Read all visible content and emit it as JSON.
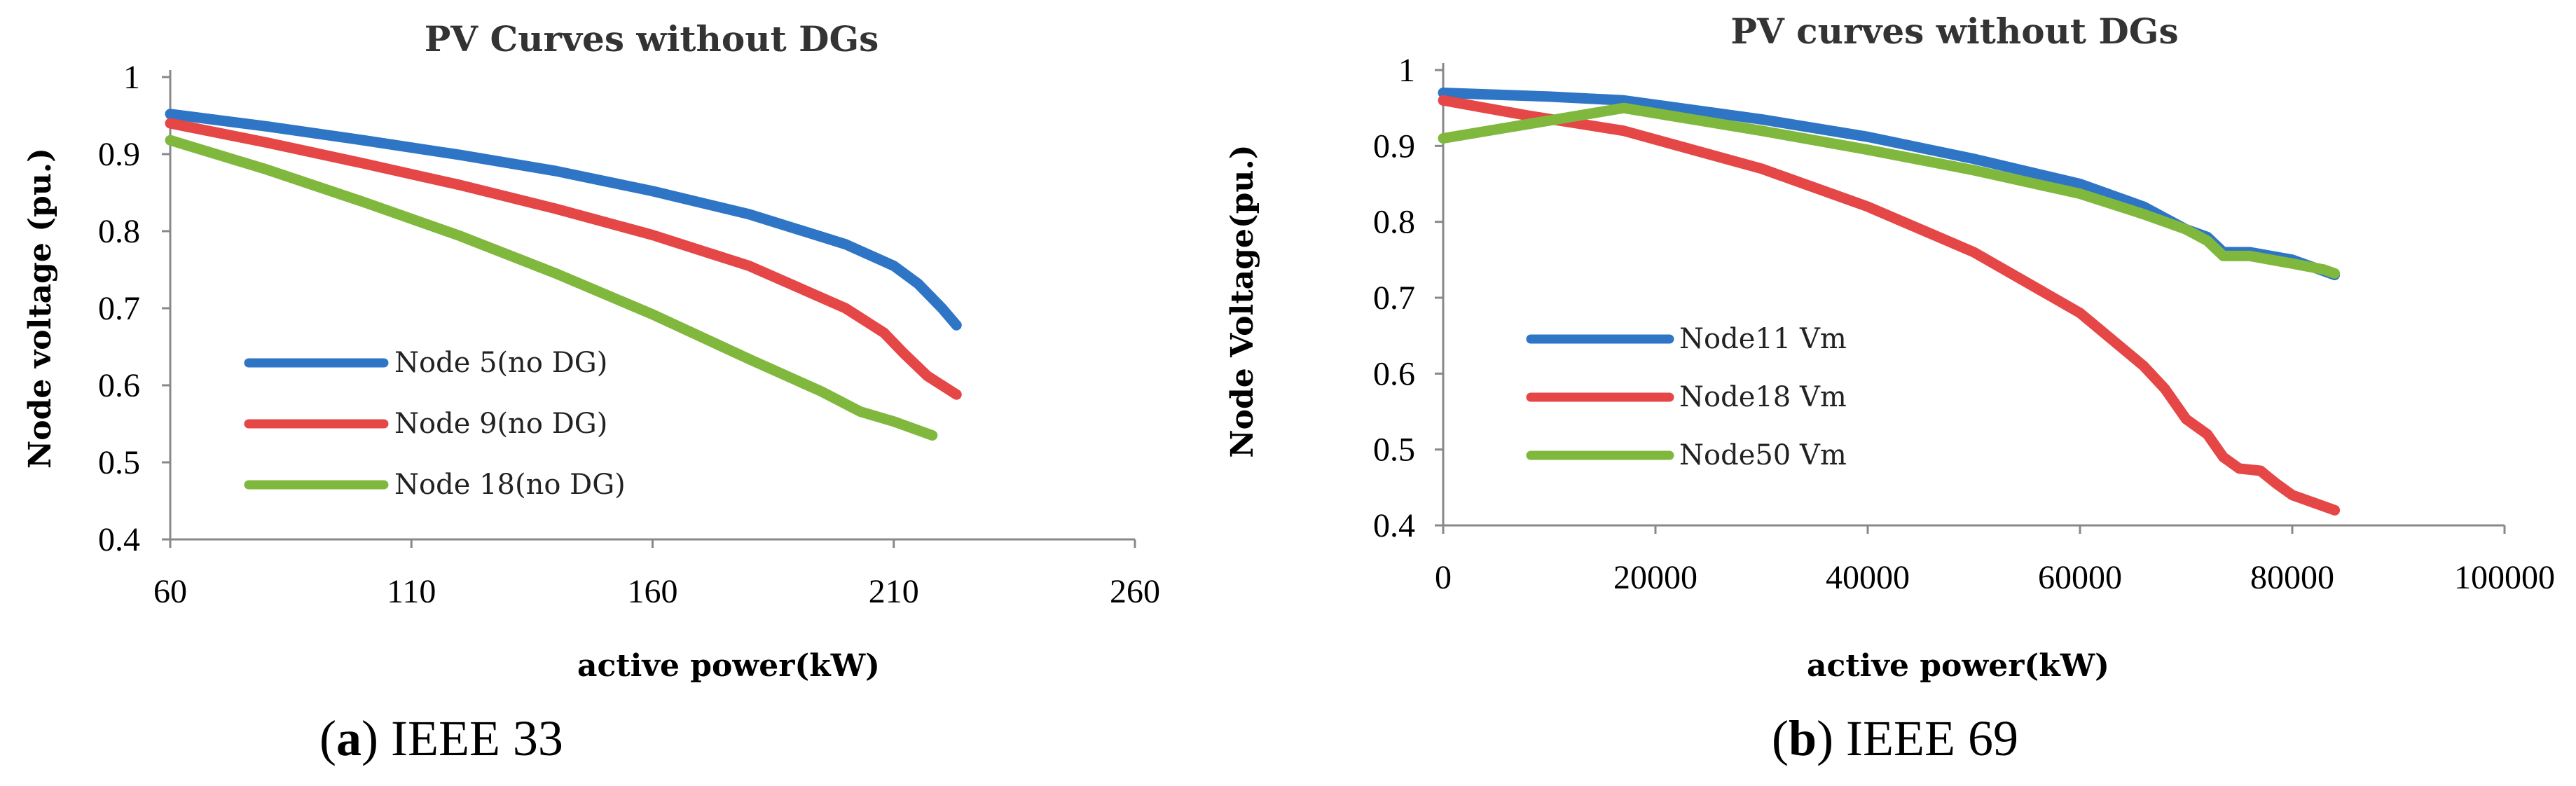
{
  "chart_data": [
    {
      "type": "line",
      "title": "PV Curves without DGs",
      "xlabel": "active power(kW)",
      "ylabel": "Node voltage  (pu.)",
      "xlim": [
        60,
        260
      ],
      "ylim": [
        0.4,
        1.0
      ],
      "x_ticks": [
        "60",
        "110",
        "160",
        "210",
        "260"
      ],
      "y_ticks": [
        "0.4",
        "0.5",
        "0.6",
        "0.7",
        "0.8",
        "0.9",
        "1"
      ],
      "grid": false,
      "legend_position": "lower-left",
      "series": [
        {
          "name": "Node 5(no DG)",
          "color": "#2e75c6",
          "points": [
            [
              60,
              0.952
            ],
            [
              80,
              0.936
            ],
            [
              100,
              0.918
            ],
            [
              120,
              0.899
            ],
            [
              140,
              0.878
            ],
            [
              160,
              0.852
            ],
            [
              180,
              0.822
            ],
            [
              200,
              0.783
            ],
            [
              210,
              0.755
            ],
            [
              215,
              0.732
            ],
            [
              220,
              0.7
            ],
            [
              223,
              0.678
            ]
          ]
        },
        {
          "name": "Node 9(no DG)",
          "color": "#e54646",
          "points": [
            [
              60,
              0.94
            ],
            [
              80,
              0.915
            ],
            [
              100,
              0.888
            ],
            [
              120,
              0.86
            ],
            [
              140,
              0.829
            ],
            [
              160,
              0.795
            ],
            [
              180,
              0.755
            ],
            [
              200,
              0.7
            ],
            [
              208,
              0.668
            ],
            [
              212,
              0.642
            ],
            [
              217,
              0.612
            ],
            [
              223,
              0.588
            ]
          ]
        },
        {
          "name": "Node 18(no DG)",
          "color": "#80b83e",
          "points": [
            [
              60,
              0.918
            ],
            [
              80,
              0.88
            ],
            [
              100,
              0.838
            ],
            [
              120,
              0.794
            ],
            [
              140,
              0.745
            ],
            [
              160,
              0.692
            ],
            [
              180,
              0.634
            ],
            [
              195,
              0.592
            ],
            [
              203,
              0.566
            ],
            [
              210,
              0.553
            ],
            [
              218,
              0.535
            ]
          ]
        }
      ],
      "caption_letter": "a",
      "caption_text": ") IEEE 33"
    },
    {
      "type": "line",
      "title": "PV curves without DGs",
      "xlabel": "active power(kW)",
      "ylabel": "Node Voltage(pu.)",
      "xlim": [
        0,
        100000
      ],
      "ylim": [
        0.4,
        1.0
      ],
      "x_ticks": [
        "0",
        "20000",
        "40000",
        "60000",
        "80000",
        "100000"
      ],
      "y_ticks": [
        "0.4",
        "0.5",
        "0.6",
        "0.7",
        "0.8",
        "0.9",
        "1"
      ],
      "grid": false,
      "legend_position": "lower-left",
      "series": [
        {
          "name": "Node11  Vm",
          "color": "#2e75c6",
          "points": [
            [
              0,
              0.97
            ],
            [
              10000,
              0.965
            ],
            [
              17000,
              0.96
            ],
            [
              30000,
              0.935
            ],
            [
              40000,
              0.912
            ],
            [
              50000,
              0.883
            ],
            [
              60000,
              0.85
            ],
            [
              66000,
              0.82
            ],
            [
              70000,
              0.79
            ],
            [
              72000,
              0.78
            ],
            [
              73500,
              0.76
            ],
            [
              76000,
              0.76
            ],
            [
              80000,
              0.75
            ],
            [
              83000,
              0.735
            ],
            [
              84000,
              0.73
            ]
          ]
        },
        {
          "name": "Node18  Vm",
          "color": "#e54646",
          "points": [
            [
              0,
              0.96
            ],
            [
              8000,
              0.94
            ],
            [
              17000,
              0.92
            ],
            [
              30000,
              0.87
            ],
            [
              40000,
              0.82
            ],
            [
              50000,
              0.76
            ],
            [
              60000,
              0.68
            ],
            [
              66000,
              0.61
            ],
            [
              68000,
              0.58
            ],
            [
              70000,
              0.54
            ],
            [
              72000,
              0.52
            ],
            [
              73500,
              0.49
            ],
            [
              75000,
              0.475
            ],
            [
              77000,
              0.472
            ],
            [
              78500,
              0.455
            ],
            [
              80000,
              0.44
            ],
            [
              84000,
              0.42
            ]
          ]
        },
        {
          "name": "Node50  Vm",
          "color": "#80b83e",
          "points": [
            [
              0,
              0.91
            ],
            [
              17000,
              0.95
            ],
            [
              30000,
              0.92
            ],
            [
              40000,
              0.895
            ],
            [
              50000,
              0.868
            ],
            [
              60000,
              0.837
            ],
            [
              66000,
              0.81
            ],
            [
              70000,
              0.79
            ],
            [
              72000,
              0.775
            ],
            [
              73500,
              0.755
            ],
            [
              76000,
              0.755
            ],
            [
              80000,
              0.745
            ],
            [
              83000,
              0.737
            ],
            [
              84000,
              0.732
            ]
          ]
        }
      ],
      "caption_letter": "b",
      "caption_text": ") IEEE 69"
    }
  ]
}
